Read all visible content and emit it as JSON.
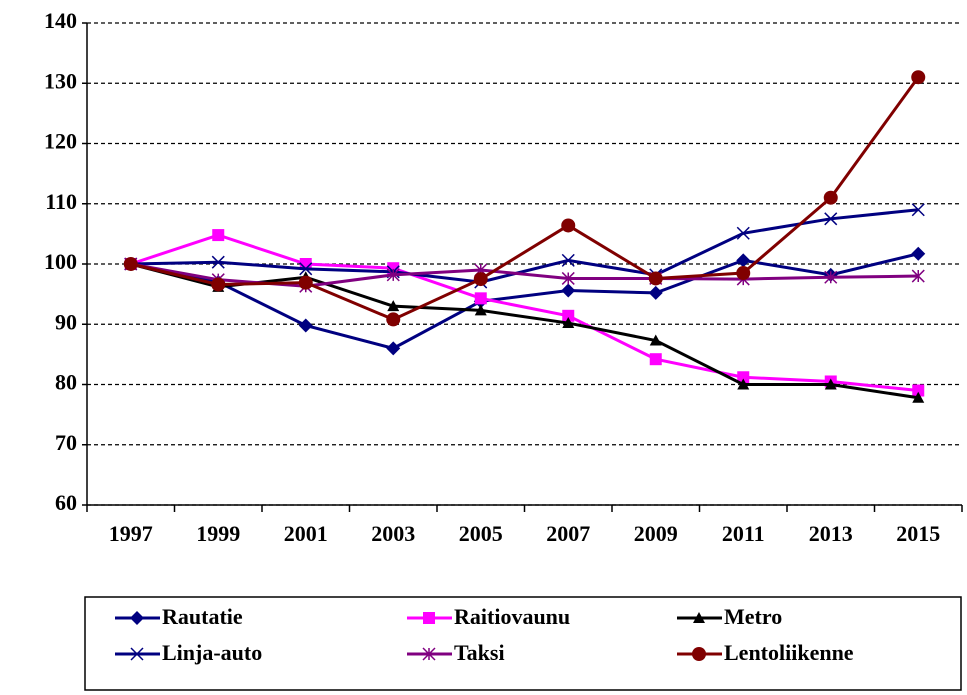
{
  "chart_data": {
    "type": "line",
    "categories": [
      "1997",
      "1999",
      "2001",
      "2003",
      "2005",
      "2007",
      "2009",
      "2011",
      "2013",
      "2015"
    ],
    "series": [
      {
        "name": "Rautatie",
        "color": "#000080",
        "marker": "diamond",
        "values": [
          100,
          97,
          89.8,
          86,
          93.8,
          95.6,
          95.2,
          100.6,
          98.2,
          101.7
        ]
      },
      {
        "name": "Raitiovaunu",
        "color": "#ff00ff",
        "marker": "square",
        "values": [
          100,
          104.8,
          100,
          99.3,
          94.3,
          91.4,
          84.2,
          81.2,
          80.5,
          79
        ]
      },
      {
        "name": "Metro",
        "color": "#000000",
        "marker": "triangle",
        "values": [
          100,
          96.2,
          97.8,
          93,
          92.3,
          90.2,
          87.3,
          80,
          80,
          77.8
        ]
      },
      {
        "name": "Linja-auto",
        "color": "#000080",
        "marker": "x",
        "values": [
          100,
          100.3,
          99.2,
          98.7,
          97,
          100.6,
          98.2,
          105.1,
          107.5,
          109
        ]
      },
      {
        "name": "Taksi",
        "color": "#800080",
        "marker": "asterisk",
        "values": [
          100,
          97.4,
          96.3,
          98.2,
          99,
          97.6,
          97.6,
          97.5,
          97.8,
          98
        ]
      },
      {
        "name": "Lentoliikenne",
        "color": "#800000",
        "marker": "circle",
        "values": [
          100,
          96.6,
          96.9,
          90.8,
          97.5,
          106.4,
          97.6,
          98.5,
          111,
          131
        ]
      }
    ],
    "ylim": [
      60,
      140
    ],
    "yticks": [
      60,
      70,
      80,
      90,
      100,
      110,
      120,
      130,
      140
    ],
    "grid": true
  }
}
